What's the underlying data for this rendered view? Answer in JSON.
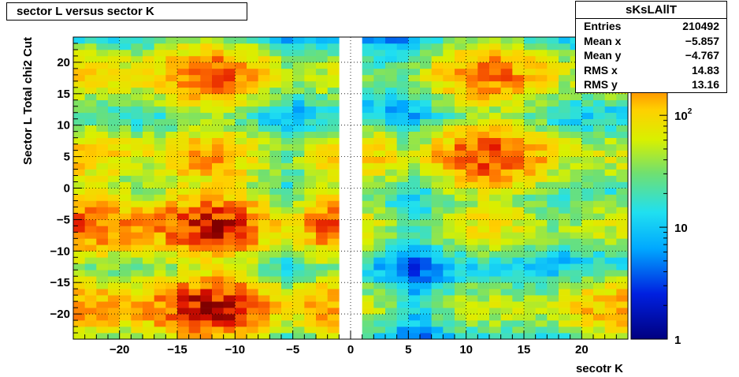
{
  "title": "sector L versus sector K",
  "stats": {
    "name": "sKsLAllT",
    "rows": [
      {
        "label": "Entries",
        "value": "210492"
      },
      {
        "label": "Mean x",
        "value": "−5.857"
      },
      {
        "label": "Mean y",
        "value": "−4.767"
      },
      {
        "label": "RMS x",
        "value": "14.83"
      },
      {
        "label": "RMS y",
        "value": "13.16"
      }
    ]
  },
  "chart_data": {
    "type": "heatmap",
    "title": "sector L versus sector K",
    "xlabel": "secotr K",
    "ylabel": "Sector L  Total chi2 Cut",
    "xlim": [
      -24,
      24
    ],
    "ylim": [
      -24,
      24
    ],
    "x_ticks": [
      -20,
      -15,
      -10,
      -5,
      0,
      5,
      10,
      15,
      20
    ],
    "y_ticks": [
      -20,
      -15,
      -10,
      -5,
      0,
      5,
      10,
      15,
      20
    ],
    "x_tick_labels": [
      "−20",
      "−15",
      "−10",
      "−5",
      "0",
      "5",
      "10",
      "15",
      "20"
    ],
    "y_tick_labels": [
      "−20",
      "−15",
      "−10",
      "−5",
      "0",
      "5",
      "10",
      "15",
      "20"
    ],
    "grid": true,
    "z_scale": "log",
    "z_range": [
      1,
      500
    ],
    "colorbar_ticks": [
      1,
      10,
      100
    ],
    "colorbar_tick_labels": [
      "1",
      "10",
      "10^2"
    ],
    "cluster_rows": [
      -19,
      -6,
      5,
      18
    ],
    "cluster_cols": [
      -23,
      -12,
      -2,
      2,
      12,
      23
    ],
    "peak_counts": {
      "-19": {
        "-23": 160,
        "-12": 420,
        "-2": 170,
        "2": 40,
        "12": 60,
        "23": 150
      },
      "-6": {
        "-23": 260,
        "-12": 380,
        "-2": 240,
        "2": 50,
        "12": 90,
        "23": 60
      },
      "5": {
        "-23": 120,
        "-12": 160,
        "-2": 90,
        "2": 110,
        "12": 300,
        "23": 60
      },
      "18": {
        "-23": 100,
        "-12": 250,
        "-2": 60,
        "2": 25,
        "12": 220,
        "23": 70
      }
    }
  }
}
